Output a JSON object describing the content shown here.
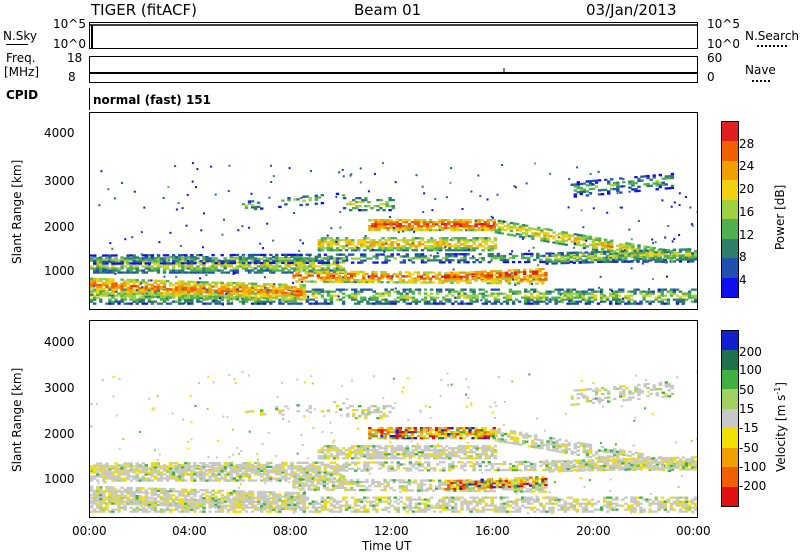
{
  "header": {
    "title": "TIGER (fitACF)",
    "beam": "Beam 01",
    "date": "03/Jan/2013"
  },
  "strips": {
    "nsky": {
      "label": "N.Sky",
      "left_ticks": [
        "10^5",
        "10^0"
      ],
      "right_ticks": [
        "10^5",
        "10^0"
      ],
      "right_label": "N.Search"
    },
    "freq": {
      "label_line1": "Freq.",
      "label_line2": "[MHz]",
      "left_ticks": [
        "18",
        "8"
      ],
      "right_ticks": [
        "60",
        "0"
      ],
      "right_label": "Nave"
    },
    "cpid": {
      "label": "CPID",
      "value": "normal (fast) 151"
    }
  },
  "chart_data": [
    {
      "type": "heatmap",
      "name": "power",
      "ylabel": "Slant Range [km]",
      "yticks": [
        1000,
        2000,
        3000,
        4000
      ],
      "ylim": [
        200,
        4600
      ],
      "colorbar": {
        "label": "Power [dB]",
        "ticks": [
          "4",
          "8",
          "12",
          "16",
          "20",
          "24",
          "28"
        ],
        "colors": [
          "#1010ee",
          "#2050b0",
          "#2f7f6a",
          "#50b050",
          "#9fd040",
          "#f0d010",
          "#f0a000",
          "#f06000",
          "#e02020"
        ]
      }
    },
    {
      "type": "heatmap",
      "name": "velocity",
      "ylabel": "Slant Range [km]",
      "yticks": [
        1000,
        2000,
        3000,
        4000
      ],
      "ylim": [
        200,
        4600
      ],
      "colorbar": {
        "label": "Velocity [m s",
        "label_sup": "-1",
        "label_end": "]",
        "ticks": [
          "200",
          "100",
          "50",
          "15",
          "-15",
          "-50",
          "-100",
          "-200"
        ],
        "colors": [
          "#1020d0",
          "#207050",
          "#40b040",
          "#a0d060",
          "#c8c8c8",
          "#f0e000",
          "#f0a000",
          "#f06000",
          "#e01010"
        ]
      }
    }
  ],
  "xaxis": {
    "label": "Time UT",
    "ticks": [
      "00:00",
      "04:00",
      "08:00",
      "12:00",
      "16:00",
      "20:00",
      "00:00"
    ]
  }
}
